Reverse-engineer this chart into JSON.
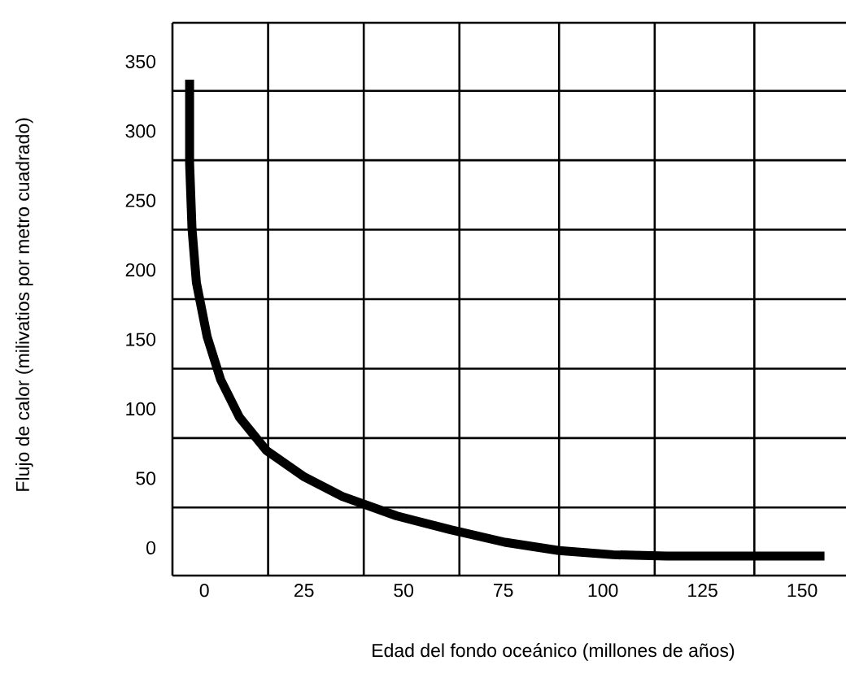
{
  "chart_data": {
    "type": "line",
    "xlabel": "Edad del fondo oceánico (millones de años)",
    "ylabel": "Flujo de calor (milivatios por metro cuadrado)",
    "x": [
      -3.7,
      -3.7,
      -3.1,
      -2,
      0.7,
      4.1,
      8.8,
      15.6,
      25.1,
      34.6,
      48.2,
      61.8,
      75.4,
      89,
      102.6,
      116,
      136.5,
      155.6
    ],
    "series": [
      {
        "color": "#000000",
        "values": [
          337,
          277,
          230,
          191,
          152,
          121,
          94,
          70,
          51,
          37,
          23,
          13,
          4,
          -2,
          -5,
          -6,
          -6,
          -6
        ]
      }
    ],
    "xlim": [
      -8,
      161
    ],
    "ylim": [
      -20,
      378
    ],
    "xticks": [
      0,
      25,
      50,
      75,
      100,
      125,
      150,
      {
        "value": 16,
        "label": null
      },
      {
        "value": 40,
        "label": null
      },
      {
        "value": 64,
        "label": null
      },
      {
        "value": 89,
        "label": null
      },
      {
        "value": 113,
        "label": null
      },
      {
        "value": 138,
        "label": null
      }
    ],
    "yticks": [
      0,
      50,
      100,
      150,
      200,
      250,
      300,
      350,
      {
        "value": 29,
        "label": null
      },
      {
        "value": 79,
        "label": null
      },
      {
        "value": 129,
        "label": null
      },
      {
        "value": 179,
        "label": null
      },
      {
        "value": 229,
        "label": null
      },
      {
        "value": 279,
        "label": null
      },
      {
        "value": 329,
        "label": null
      },
      {
        "value": 378,
        "label": null
      }
    ],
    "grid": true,
    "marker": "none",
    "line_style": "solid"
  }
}
